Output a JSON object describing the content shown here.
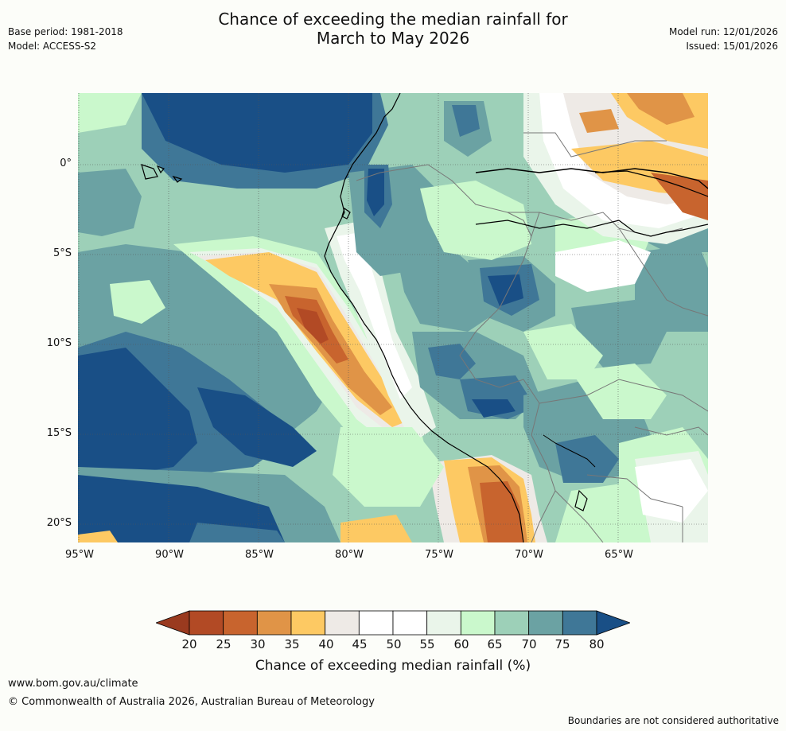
{
  "title": {
    "line1": "Chance of exceeding the median rainfall for",
    "line2": "March to May 2026"
  },
  "meta_left": {
    "base_period": "Base period: 1981-2018",
    "model": "Model: ACCESS-S2"
  },
  "meta_right": {
    "model_run": "Model run: 12/01/2026",
    "issued": "Issued: 15/01/2026"
  },
  "map": {
    "region": "Western South America and eastern Pacific",
    "lat_labels": [
      "0°",
      "5°S",
      "10°S",
      "15°S",
      "20°S"
    ],
    "lon_labels": [
      "95°W",
      "90°W",
      "85°W",
      "80°W",
      "75°W",
      "70°W",
      "65°W"
    ],
    "lon_range_deg": [
      -95,
      -60
    ],
    "lat_range_deg": [
      -21,
      4
    ],
    "features": [
      {
        "name": "eastern Pacific high-chance zone",
        "value_band": "75-80+"
      },
      {
        "name": "coastal Peru dry band",
        "value_band": "20-40"
      },
      {
        "name": "southern Peru / Bolivia dry zone",
        "value_band": "20-40"
      },
      {
        "name": "northern Brazil dry zone",
        "value_band": "25-45"
      },
      {
        "name": "western Amazon wet zone",
        "value_band": "60-80"
      }
    ]
  },
  "colorbar": {
    "ticks": [
      "20",
      "25",
      "30",
      "35",
      "40",
      "45",
      "50",
      "55",
      "60",
      "65",
      "70",
      "75",
      "80"
    ],
    "colors": [
      "#9a3a1f",
      "#b24a25",
      "#c8642e",
      "#e09447",
      "#fdc963",
      "#eeeae6",
      "#ffffff",
      "#ffffff",
      "#eaf5ea",
      "#caf8cc",
      "#9dd0b8",
      "#6ba2a3",
      "#3f7797",
      "#194f86"
    ],
    "label": "Chance of exceeding median rainfall (%)"
  },
  "footer": {
    "url": "www.bom.gov.au/climate",
    "copyright": "© Commonwealth of Australia 2026, Australian Bureau of Meteorology",
    "note": "Boundaries are not considered authoritative"
  }
}
